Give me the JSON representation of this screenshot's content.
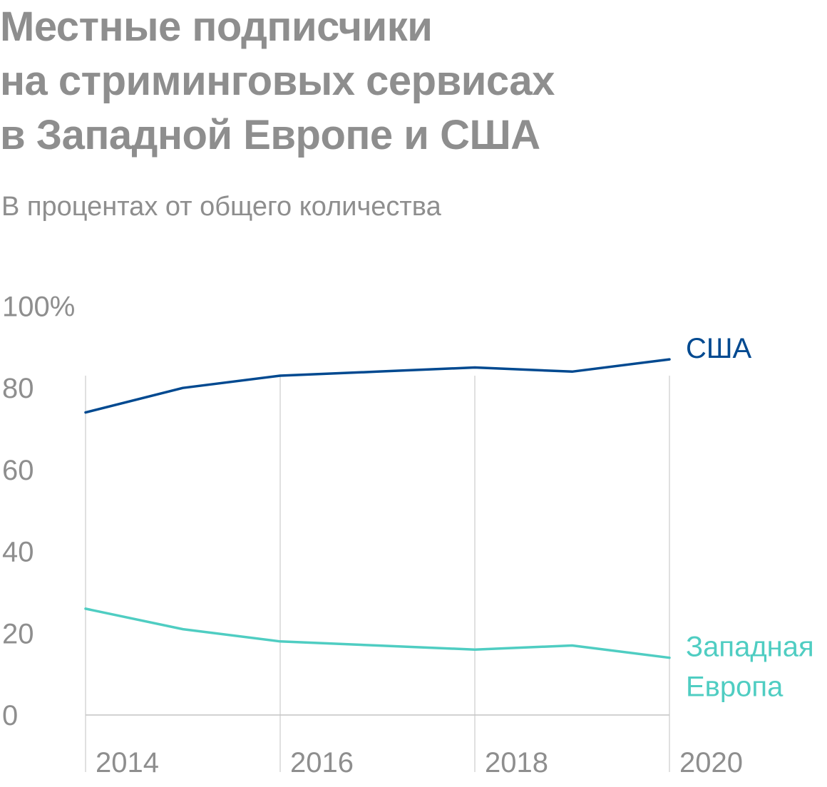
{
  "colors": {
    "usa": "#004990",
    "europe": "#4fcdc2",
    "text": "#8e8e8e",
    "grid": "#d6d6d6",
    "axis": "#c4c4c4"
  },
  "chart_data": {
    "type": "line",
    "title_lines": [
      "Местные подписчики",
      "на стриминговых сервисах",
      "в Западной Европе и США"
    ],
    "subtitle": "В процентах от общего количества",
    "x_ticks": [
      "2014",
      "2016",
      "2018",
      "2020"
    ],
    "y_ticks": [
      "0",
      "20",
      "40",
      "60",
      "80",
      "100%"
    ],
    "xlim": [
      2014,
      2020
    ],
    "ylim": [
      0,
      100
    ],
    "grid": true,
    "legend": "direct labels at right end of lines",
    "series": [
      {
        "key": "usa",
        "label_lines": [
          "США"
        ],
        "x": [
          2014,
          2015,
          2016,
          2017,
          2018,
          2019,
          2020
        ],
        "values": [
          74,
          80,
          83,
          84,
          85,
          84,
          87
        ]
      },
      {
        "key": "europe",
        "label_lines": [
          "Западная",
          "Европа"
        ],
        "x": [
          2014,
          2015,
          2016,
          2017,
          2018,
          2019,
          2020
        ],
        "values": [
          26,
          21,
          18,
          17,
          16,
          17,
          14
        ]
      }
    ]
  }
}
